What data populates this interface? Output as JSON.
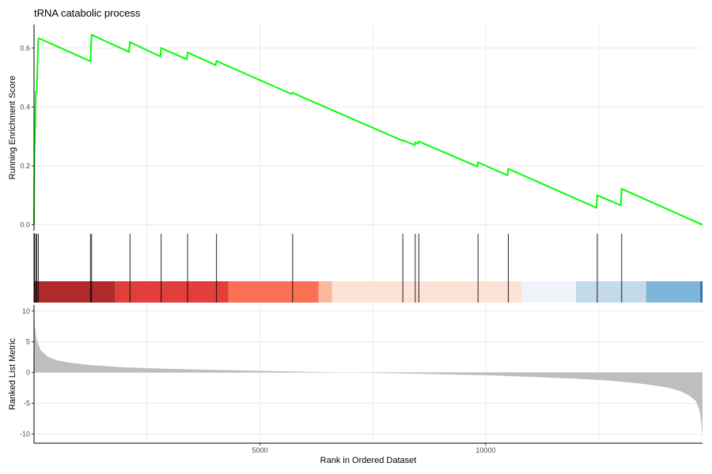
{
  "chart_data": {
    "type": "line",
    "title": "tRNA catabolic process",
    "x_axis": {
      "label": "Rank in Ordered Dataset",
      "range": [
        0,
        14800
      ],
      "ticks": [
        5000,
        10000
      ],
      "tick_labels": [
        "5000",
        "10000"
      ],
      "gridlines": [
        2500,
        5000,
        7500,
        10000,
        12500
      ]
    },
    "enrichment_panel": {
      "ylabel": "Running Enrichment Score",
      "ylim": [
        -0.02,
        0.68
      ],
      "yticks": [
        0.0,
        0.2,
        0.4,
        0.6
      ],
      "ytick_labels": [
        "0.0",
        "0.2",
        "0.4",
        "0.6"
      ],
      "line_color": "#00ff00",
      "x": [
        0,
        10,
        40,
        60,
        95,
        110,
        1250,
        1260,
        1275,
        2100,
        2125,
        2800,
        2815,
        3380,
        3400,
        4020,
        4040,
        5700,
        5725,
        8150,
        8165,
        8430,
        8440,
        8500,
        8520,
        9810,
        9830,
        10480,
        10500,
        12450,
        12470,
        12990,
        13010,
        14800
      ],
      "y": [
        0.0,
        0.23,
        0.45,
        0.45,
        0.63,
        0.633,
        0.555,
        0.6,
        0.645,
        0.587,
        0.62,
        0.571,
        0.6,
        0.562,
        0.585,
        0.542,
        0.556,
        0.444,
        0.448,
        0.286,
        0.287,
        0.271,
        0.28,
        0.275,
        0.283,
        0.198,
        0.212,
        0.168,
        0.19,
        0.058,
        0.1,
        0.066,
        0.122,
        0.0
      ]
    },
    "gene_hits": {
      "positions": [
        10,
        40,
        60,
        95,
        1250,
        1275,
        2125,
        2815,
        3400,
        4040,
        5725,
        8165,
        8440,
        8520,
        9830,
        10500,
        12470,
        13010
      ],
      "line_color": "#000000"
    },
    "color_bar": {
      "segments": [
        {
          "start": 0,
          "end": 1800,
          "color": "#b2292e"
        },
        {
          "start": 1800,
          "end": 4300,
          "color": "#e23e3b"
        },
        {
          "start": 4300,
          "end": 6300,
          "color": "#fb7055"
        },
        {
          "start": 6300,
          "end": 6600,
          "color": "#fcb79f"
        },
        {
          "start": 6600,
          "end": 10800,
          "color": "#fde2d6"
        },
        {
          "start": 10800,
          "end": 12000,
          "color": "#eff4fa"
        },
        {
          "start": 12000,
          "end": 13550,
          "color": "#c3dbe8"
        },
        {
          "start": 13550,
          "end": 14750,
          "color": "#7eb6d9"
        },
        {
          "start": 14750,
          "end": 14800,
          "color": "#2f6eb0"
        }
      ]
    },
    "ranked_metric_panel": {
      "ylabel": "Ranked List Metric",
      "ylim": [
        -11.5,
        11
      ],
      "yticks": [
        -10,
        -5,
        0,
        5,
        10
      ],
      "ytick_labels": [
        "-10",
        "-5",
        "0",
        "5",
        "10"
      ],
      "fill_color": "#bebebe",
      "x": [
        0,
        20,
        60,
        150,
        300,
        500,
        800,
        1200,
        2000,
        3000,
        4000,
        5000,
        6000,
        7000,
        8000,
        9000,
        10000,
        11000,
        12000,
        12800,
        13500,
        14000,
        14300,
        14500,
        14650,
        14730,
        14780,
        14800
      ],
      "y": [
        10.2,
        7.3,
        5.3,
        3.6,
        2.6,
        2.0,
        1.6,
        1.25,
        0.85,
        0.6,
        0.42,
        0.28,
        0.12,
        0.0,
        -0.12,
        -0.28,
        -0.45,
        -0.7,
        -1.0,
        -1.35,
        -1.85,
        -2.4,
        -3.0,
        -3.7,
        -4.6,
        -6.0,
        -8.5,
        -10.8
      ]
    }
  }
}
